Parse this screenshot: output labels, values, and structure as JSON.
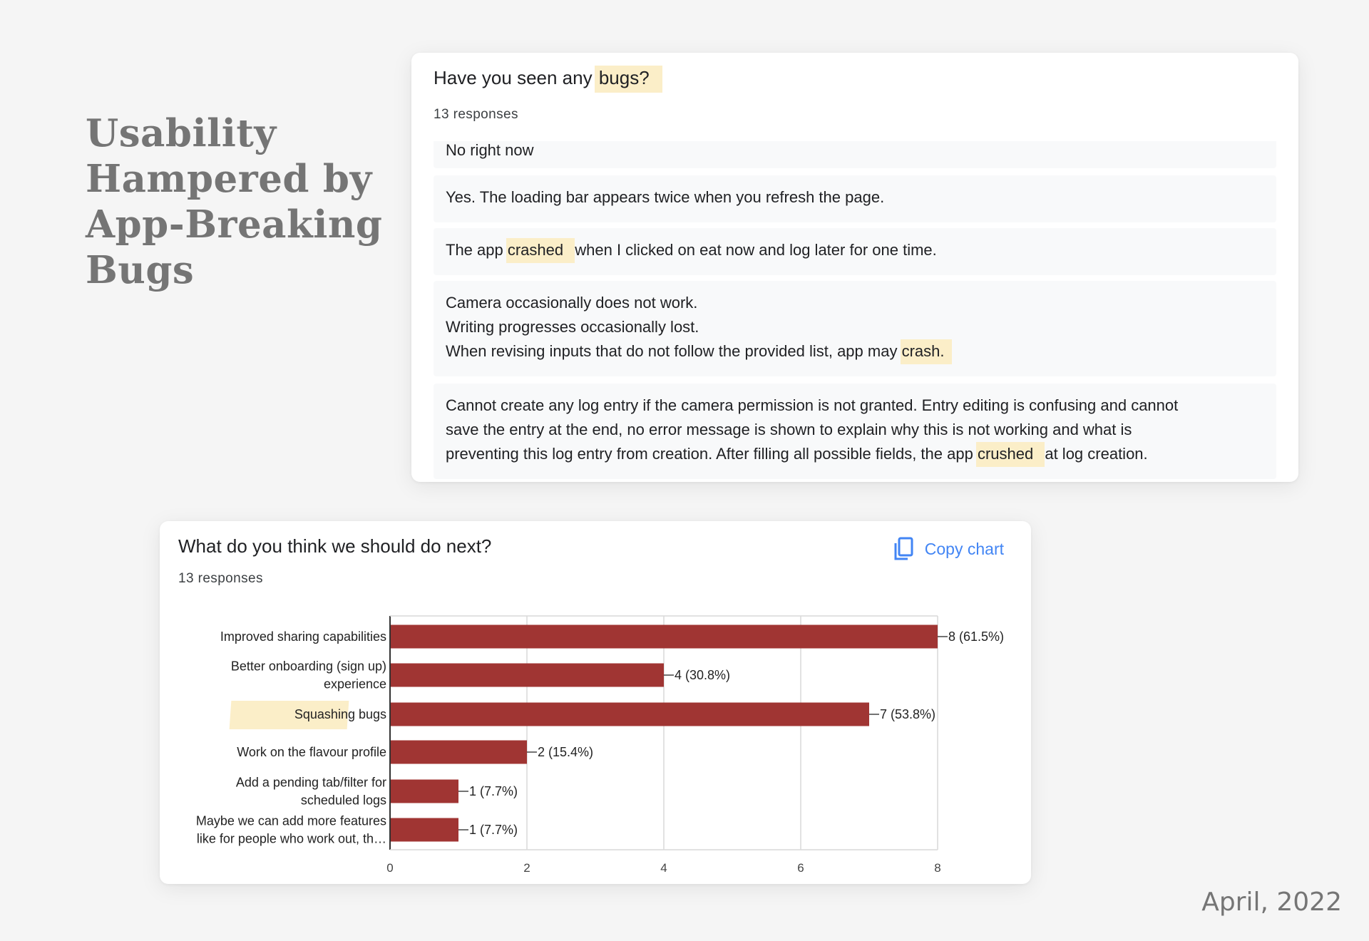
{
  "slide": {
    "title_lines": [
      "Usability",
      "Hampered by",
      "App-Breaking",
      "Bugs"
    ],
    "date": "April, 2022"
  },
  "colors": {
    "highlight": "#fbeec8",
    "bar": "#a03533",
    "accent_blue": "#4285f4",
    "title_gray": "#757575"
  },
  "bugs_card": {
    "question_prefix": "Have you seen any ",
    "question_highlight": "bugs?",
    "response_count": "13 responses",
    "cut_off_response": "No right now",
    "responses": [
      {
        "lines": [
          {
            "pre": "Yes. The loading bar appears twice when you refresh the page.",
            "hl": "",
            "post": ""
          }
        ]
      },
      {
        "lines": [
          {
            "pre": "The app ",
            "hl": "crashed ",
            "post": "when I clicked on eat now and log later for one time."
          }
        ]
      },
      {
        "lines": [
          {
            "pre": "Camera occasionally does not work.",
            "hl": "",
            "post": ""
          },
          {
            "pre": "Writing progresses occasionally lost.",
            "hl": "",
            "post": ""
          },
          {
            "pre": "When revising inputs that do not follow the provided list, app may ",
            "hl": "crash.",
            "post": ""
          }
        ]
      },
      {
        "lines": [
          {
            "pre": "Cannot create any log entry if the camera permission is not granted. Entry editing is confusing and cannot",
            "hl": "",
            "post": ""
          },
          {
            "pre": "save the entry at the end, no error message is shown to explain why this is not working and what is",
            "hl": "",
            "post": ""
          },
          {
            "pre": "preventing this log entry from creation. After filling all possible fields, the app ",
            "hl": "crushed ",
            "post": "at log creation."
          }
        ]
      }
    ]
  },
  "next_card": {
    "question": "What do you think we should do next?",
    "response_count": "13 responses",
    "copy_label": "Copy chart",
    "copy_icon": "copy-icon"
  },
  "chart_data": {
    "type": "bar",
    "orientation": "horizontal",
    "title": "What do you think we should do next?",
    "categories": [
      [
        "Improved sharing capabilities"
      ],
      [
        "Better onboarding (sign up)",
        "experience"
      ],
      [
        "Squashing bugs"
      ],
      [
        "Work on the flavour profile"
      ],
      [
        "Add a pending tab/filter for",
        "scheduled logs"
      ],
      [
        "Maybe we can add more features",
        "like for people who work out, th…"
      ]
    ],
    "values": [
      8,
      4,
      7,
      2,
      1,
      1
    ],
    "data_labels": [
      "8 (61.5%)",
      "4 (30.8%)",
      "7 (53.8%)",
      "2 (15.4%)",
      "1 (7.7%)",
      "1 (7.7%)"
    ],
    "highlighted_category_index": 2,
    "x_ticks": [
      0,
      2,
      4,
      6,
      8
    ],
    "xlim": [
      0,
      8
    ],
    "grid": true,
    "xlabel": "",
    "ylabel": ""
  }
}
